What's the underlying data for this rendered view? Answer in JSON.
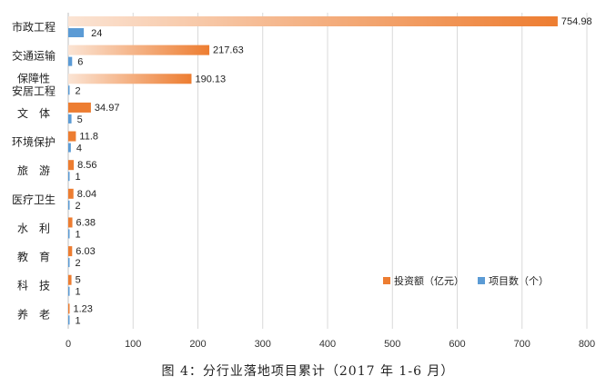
{
  "chart_data": {
    "type": "bar",
    "orientation": "horizontal",
    "categories": [
      [
        "市政工程"
      ],
      [
        "交通运输"
      ],
      [
        "保障性",
        "安居工程"
      ],
      [
        "文　体"
      ],
      [
        "环境保护"
      ],
      [
        "旅　游"
      ],
      [
        "医疗卫生"
      ],
      [
        "水　利"
      ],
      [
        "教　育"
      ],
      [
        "科　技"
      ],
      [
        "养　老"
      ]
    ],
    "series": [
      {
        "name": "投资额（亿元）",
        "color": "#ED7D31",
        "values": [
          754.98,
          217.63,
          190.13,
          34.97,
          11.8,
          8.56,
          8.04,
          6.38,
          6.03,
          5,
          1.23
        ],
        "labels": [
          "754.98",
          "217.63",
          "190.13",
          "34.97",
          "11.8",
          "8.56",
          "8.04",
          "6.38",
          "6.03",
          "5",
          "1.23"
        ]
      },
      {
        "name": "项目数（个）",
        "color": "#5B9BD5",
        "values": [
          24,
          6,
          2,
          5,
          4,
          1,
          2,
          1,
          2,
          1,
          1
        ],
        "labels": [
          "24",
          "6",
          "2",
          "5",
          "4",
          "1",
          "2",
          "1",
          "2",
          "1",
          "1"
        ]
      }
    ],
    "xlim": [
      0,
      800
    ],
    "xticks": [
      "0",
      "100",
      "200",
      "300",
      "400",
      "500",
      "600",
      "700",
      "800"
    ],
    "grid": "vertical",
    "legend": "lower-right"
  },
  "caption": "图 4：分行业落地项目累计（2017 年 1-6 月）"
}
